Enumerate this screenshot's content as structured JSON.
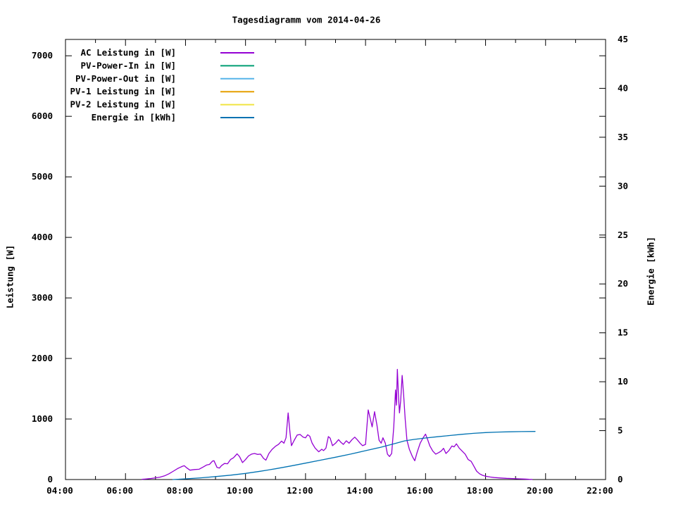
{
  "chart_data": {
    "type": "line",
    "title": "Tagesdiagramm vom 2014-04-26",
    "ylabel": "Leistung [W]",
    "y2label": "Energie [kWh]",
    "grid": false,
    "legend_position": "top-left-inside",
    "x_axis": {
      "min_hour": 4,
      "max_hour": 22,
      "major_tick_hours": [
        4,
        6,
        8,
        10,
        12,
        14,
        16,
        18,
        20,
        22
      ],
      "major_tick_labels": [
        "04:00",
        "06:00",
        "08:00",
        "10:00",
        "12:00",
        "14:00",
        "16:00",
        "18:00",
        "20:00",
        "22:00"
      ],
      "minor_tick_hours": [
        5,
        7,
        9,
        11,
        13,
        15,
        17,
        19,
        21
      ]
    },
    "y_axis": {
      "label": "Leistung [W]",
      "min": 0,
      "max": 7270,
      "major_ticks": [
        0,
        1000,
        2000,
        3000,
        4000,
        5000,
        6000,
        7000
      ],
      "major_tick_labels": [
        "0",
        "1000",
        "2000",
        "3000",
        "4000",
        "5000",
        "6000",
        "7000"
      ]
    },
    "y2_axis": {
      "label": "Energie [kWh]",
      "min": 0,
      "max": 45,
      "major_ticks": [
        0,
        5,
        10,
        15,
        20,
        25,
        30,
        35,
        40,
        45
      ],
      "major_tick_labels": [
        "0",
        "5",
        "10",
        "15",
        "20",
        "25",
        "30",
        "35",
        "40",
        "45"
      ]
    },
    "legend": [
      {
        "label": "AC Leistung in [W]",
        "color": "#9400D3"
      },
      {
        "label": "PV-Power-In in [W]",
        "color": "#009E73"
      },
      {
        "label": "PV-Power-Out in [W]",
        "color": "#56B4E9"
      },
      {
        "label": "PV-1 Leistung in [W]",
        "color": "#E69F00"
      },
      {
        "label": "PV-2 Leistung in [W]",
        "color": "#F0E442"
      },
      {
        "label": "Energie in [kWh]",
        "color": "#0072B2"
      }
    ],
    "series": [
      {
        "name": "AC Leistung in [W]",
        "color": "#9400D3",
        "axis": "y1",
        "points": [
          [
            6.55,
            3
          ],
          [
            6.7,
            10
          ],
          [
            6.85,
            18
          ],
          [
            7.0,
            28
          ],
          [
            7.15,
            40
          ],
          [
            7.3,
            60
          ],
          [
            7.45,
            95
          ],
          [
            7.6,
            140
          ],
          [
            7.75,
            185
          ],
          [
            7.9,
            220
          ],
          [
            7.96,
            228
          ],
          [
            8.05,
            190
          ],
          [
            8.15,
            155
          ],
          [
            8.3,
            165
          ],
          [
            8.45,
            170
          ],
          [
            8.6,
            210
          ],
          [
            8.7,
            240
          ],
          [
            8.8,
            250
          ],
          [
            8.9,
            305
          ],
          [
            8.95,
            310
          ],
          [
            9.05,
            200
          ],
          [
            9.13,
            190
          ],
          [
            9.2,
            230
          ],
          [
            9.3,
            265
          ],
          [
            9.4,
            260
          ],
          [
            9.5,
            330
          ],
          [
            9.6,
            360
          ],
          [
            9.72,
            425
          ],
          [
            9.8,
            380
          ],
          [
            9.9,
            280
          ],
          [
            10.0,
            330
          ],
          [
            10.1,
            390
          ],
          [
            10.2,
            420
          ],
          [
            10.3,
            430
          ],
          [
            10.4,
            415
          ],
          [
            10.5,
            420
          ],
          [
            10.6,
            350
          ],
          [
            10.68,
            320
          ],
          [
            10.78,
            430
          ],
          [
            10.88,
            495
          ],
          [
            11.0,
            550
          ],
          [
            11.1,
            580
          ],
          [
            11.2,
            635
          ],
          [
            11.28,
            600
          ],
          [
            11.35,
            690
          ],
          [
            11.42,
            1100
          ],
          [
            11.48,
            790
          ],
          [
            11.53,
            560
          ],
          [
            11.62,
            645
          ],
          [
            11.72,
            735
          ],
          [
            11.82,
            745
          ],
          [
            11.92,
            700
          ],
          [
            12.0,
            690
          ],
          [
            12.07,
            740
          ],
          [
            12.14,
            715
          ],
          [
            12.22,
            600
          ],
          [
            12.32,
            520
          ],
          [
            12.44,
            458
          ],
          [
            12.54,
            500
          ],
          [
            12.6,
            478
          ],
          [
            12.68,
            520
          ],
          [
            12.76,
            710
          ],
          [
            12.82,
            685
          ],
          [
            12.9,
            560
          ],
          [
            13.0,
            600
          ],
          [
            13.1,
            660
          ],
          [
            13.17,
            620
          ],
          [
            13.26,
            580
          ],
          [
            13.36,
            640
          ],
          [
            13.45,
            600
          ],
          [
            13.55,
            660
          ],
          [
            13.64,
            700
          ],
          [
            13.72,
            660
          ],
          [
            13.82,
            600
          ],
          [
            13.9,
            560
          ],
          [
            14.0,
            580
          ],
          [
            14.09,
            1150
          ],
          [
            14.16,
            1000
          ],
          [
            14.22,
            870
          ],
          [
            14.3,
            1120
          ],
          [
            14.38,
            900
          ],
          [
            14.45,
            650
          ],
          [
            14.52,
            600
          ],
          [
            14.58,
            690
          ],
          [
            14.66,
            600
          ],
          [
            14.73,
            420
          ],
          [
            14.8,
            380
          ],
          [
            14.87,
            430
          ],
          [
            14.94,
            870
          ],
          [
            15.0,
            1480
          ],
          [
            15.03,
            1230
          ],
          [
            15.06,
            1820
          ],
          [
            15.1,
            1350
          ],
          [
            15.13,
            1100
          ],
          [
            15.17,
            1300
          ],
          [
            15.22,
            1720
          ],
          [
            15.27,
            1400
          ],
          [
            15.32,
            1000
          ],
          [
            15.38,
            650
          ],
          [
            15.46,
            500
          ],
          [
            15.56,
            380
          ],
          [
            15.64,
            310
          ],
          [
            15.72,
            450
          ],
          [
            15.82,
            600
          ],
          [
            15.92,
            690
          ],
          [
            16.0,
            750
          ],
          [
            16.07,
            660
          ],
          [
            16.14,
            560
          ],
          [
            16.24,
            470
          ],
          [
            16.34,
            420
          ],
          [
            16.44,
            445
          ],
          [
            16.52,
            470
          ],
          [
            16.6,
            515
          ],
          [
            16.68,
            430
          ],
          [
            16.78,
            480
          ],
          [
            16.88,
            555
          ],
          [
            16.95,
            540
          ],
          [
            17.03,
            590
          ],
          [
            17.12,
            520
          ],
          [
            17.22,
            470
          ],
          [
            17.32,
            420
          ],
          [
            17.42,
            330
          ],
          [
            17.52,
            300
          ],
          [
            17.6,
            230
          ],
          [
            17.7,
            140
          ],
          [
            17.8,
            95
          ],
          [
            17.9,
            70
          ],
          [
            18.0,
            55
          ],
          [
            18.15,
            42
          ],
          [
            18.3,
            32
          ],
          [
            18.5,
            26
          ],
          [
            18.7,
            20
          ],
          [
            18.9,
            16
          ],
          [
            19.1,
            12
          ],
          [
            19.3,
            8
          ],
          [
            19.45,
            4
          ],
          [
            19.55,
            2
          ]
        ]
      },
      {
        "name": "Energie in [kWh]",
        "color": "#0072B2",
        "axis": "y2",
        "points": [
          [
            7.58,
            0
          ],
          [
            8.0,
            0.07
          ],
          [
            8.5,
            0.17
          ],
          [
            9.0,
            0.3
          ],
          [
            9.5,
            0.45
          ],
          [
            10.0,
            0.63
          ],
          [
            10.5,
            0.85
          ],
          [
            11.0,
            1.1
          ],
          [
            11.5,
            1.38
          ],
          [
            12.0,
            1.68
          ],
          [
            12.5,
            1.98
          ],
          [
            13.0,
            2.28
          ],
          [
            13.5,
            2.6
          ],
          [
            14.0,
            2.95
          ],
          [
            14.5,
            3.3
          ],
          [
            15.0,
            3.7
          ],
          [
            15.3,
            3.95
          ],
          [
            15.6,
            4.1
          ],
          [
            16.0,
            4.25
          ],
          [
            16.4,
            4.38
          ],
          [
            16.8,
            4.5
          ],
          [
            17.2,
            4.62
          ],
          [
            17.6,
            4.72
          ],
          [
            18.0,
            4.8
          ],
          [
            18.4,
            4.85
          ],
          [
            18.8,
            4.88
          ],
          [
            19.2,
            4.9
          ],
          [
            19.65,
            4.92
          ]
        ]
      }
    ]
  }
}
